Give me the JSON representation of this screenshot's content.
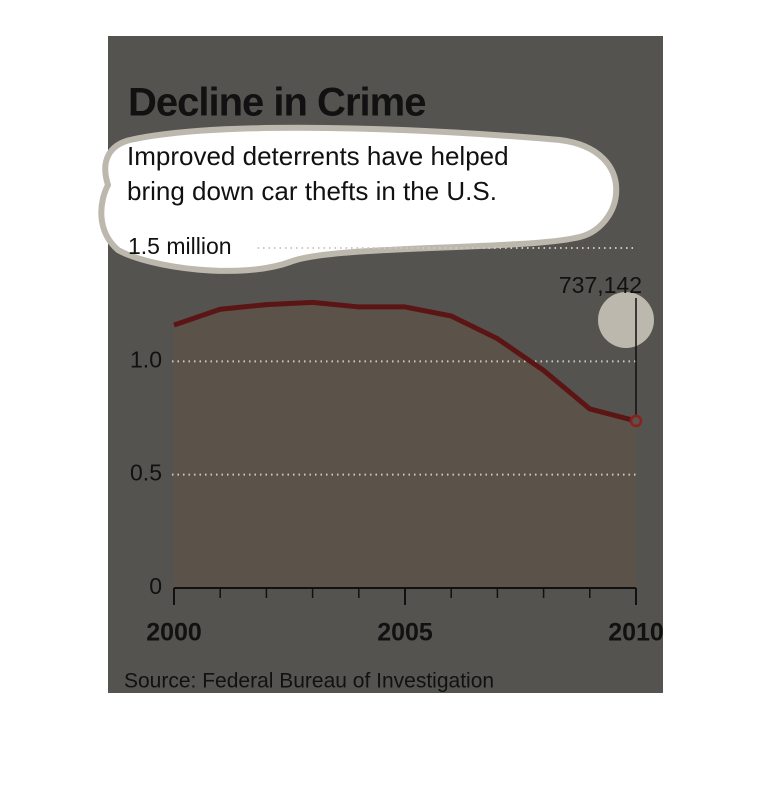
{
  "chart_data": {
    "type": "line",
    "title": "Decline in Crime",
    "subtitle": [
      "Improved deterrents have helped",
      "bring down car thefts in the U.S."
    ],
    "source": "Source: Federal Bureau of Investigation",
    "x": [
      2000,
      2001,
      2002,
      2003,
      2004,
      2005,
      2006,
      2007,
      2008,
      2009,
      2010
    ],
    "series": [
      {
        "color": "#5c1515",
        "area_color": "#5b5249",
        "values": [
          1.16,
          1.23,
          1.25,
          1.26,
          1.24,
          1.24,
          1.2,
          1.1,
          0.96,
          0.79,
          0.737142
        ],
        "value_labels": [
          null,
          null,
          null,
          null,
          null,
          null,
          null,
          null,
          null,
          null,
          "737,142"
        ]
      }
    ],
    "xlim": [
      2000,
      2010
    ],
    "xticks": [
      2000,
      2005,
      2010
    ],
    "ylim": [
      0,
      1.5
    ],
    "yticks": [
      0,
      0.5,
      {
        "value": 1,
        "label": "1.0"
      },
      {
        "value": 1.5,
        "label": "1.5 million"
      }
    ],
    "grid": true
  }
}
